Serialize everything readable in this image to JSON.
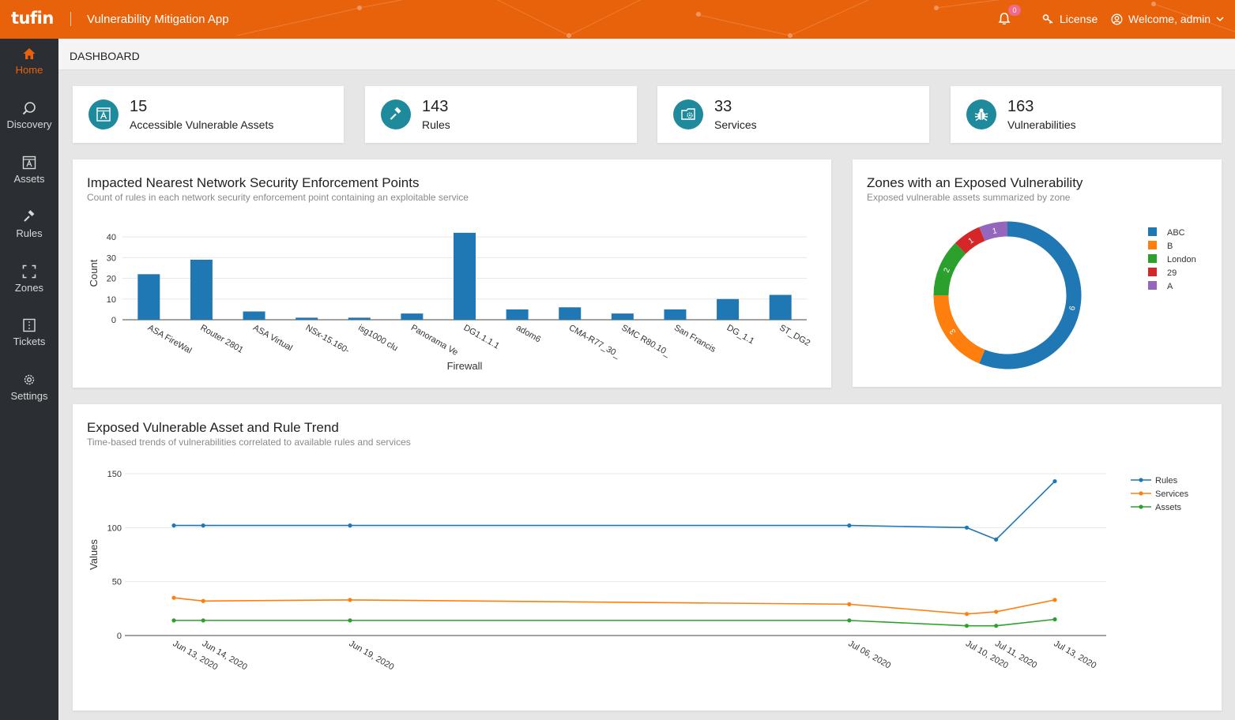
{
  "header": {
    "logo": "tufin",
    "app_title": "Vulnerability Mitigation App",
    "notification_count": "0",
    "license_label": "License",
    "welcome_label": "Welcome, admin"
  },
  "sidebar": {
    "items": [
      {
        "label": "Home",
        "icon": "home-icon"
      },
      {
        "label": "Discovery",
        "icon": "search-icon"
      },
      {
        "label": "Assets",
        "icon": "asset-icon"
      },
      {
        "label": "Rules",
        "icon": "gavel-icon"
      },
      {
        "label": "Zones",
        "icon": "zone-icon"
      },
      {
        "label": "Tickets",
        "icon": "ticket-icon"
      },
      {
        "label": "Settings",
        "icon": "gear-icon"
      }
    ]
  },
  "breadcrumb": "DASHBOARD",
  "stats": [
    {
      "value": "15",
      "label": "Accessible Vulnerable Assets",
      "icon": "asset-icon"
    },
    {
      "value": "143",
      "label": "Rules",
      "icon": "gavel-icon"
    },
    {
      "value": "33",
      "label": "Services",
      "icon": "services-icon"
    },
    {
      "value": "163",
      "label": "Vulnerabilities",
      "icon": "bug-icon"
    }
  ],
  "colors": {
    "brand": "#e8620b",
    "sidebar": "#2b2f33",
    "teal": "#1f8a9c",
    "blue": "#1f77b4",
    "orange": "#ff7f0e",
    "green": "#2ca02c",
    "red": "#d62728",
    "purple": "#9467bd"
  },
  "panels": {
    "bar": {
      "title": "Impacted Nearest Network Security Enforcement Points",
      "subtitle": "Count of rules in each network security enforcement point containing an exploitable service"
    },
    "donut": {
      "title": "Zones with an Exposed Vulnerability",
      "subtitle": "Exposed vulnerable assets summarized by zone"
    },
    "trend": {
      "title": "Exposed Vulnerable Asset and Rule Trend",
      "subtitle": "Time-based trends of vulnerabilities correlated to available rules and services"
    }
  },
  "chart_data": [
    {
      "type": "bar",
      "xlabel": "Firewall",
      "ylabel": "Count",
      "ylim": [
        0,
        45
      ],
      "yticks": [
        0,
        10,
        20,
        30,
        40
      ],
      "categories": [
        "ASA FireWal",
        "Router 2801",
        "ASA Virtual",
        "NSx-15.160-",
        "isg1000 clu",
        "Panorama Ve",
        "DG1.1.1.1",
        "adom6",
        "CMA-R77_30_",
        "SMC R80.10_",
        "San Francis",
        "DG_1.1",
        "ST_DG2"
      ],
      "values": [
        22,
        29,
        4,
        1,
        1,
        3,
        42,
        5,
        6,
        3,
        5,
        10,
        12
      ]
    },
    {
      "type": "pie",
      "hole": true,
      "labels": [
        "ABC",
        "B",
        "London",
        "29",
        "A"
      ],
      "values": [
        9,
        3,
        2,
        1,
        1
      ],
      "colors": [
        "#1f77b4",
        "#ff7f0e",
        "#2ca02c",
        "#d62728",
        "#9467bd"
      ]
    },
    {
      "type": "line",
      "xlabel": "",
      "ylabel": "Values",
      "ylim": [
        0,
        150
      ],
      "yticks": [
        0,
        50,
        100,
        150
      ],
      "x": [
        "2020-06-13",
        "2020-06-14",
        "2020-06-19",
        "2020-07-06",
        "2020-07-10",
        "2020-07-11",
        "2020-07-13"
      ],
      "x_tick_labels": [
        "Jun 13, 2020",
        "Jun 14, 2020",
        "Jun 19, 2020",
        "Jul 06, 2020",
        "Jul 10, 2020",
        "Jul 11, 2020",
        "Jul 13, 2020"
      ],
      "series": [
        {
          "name": "Rules",
          "color": "#1f77b4",
          "values": [
            102,
            102,
            102,
            102,
            100,
            89,
            143
          ]
        },
        {
          "name": "Services",
          "color": "#ff7f0e",
          "values": [
            35,
            32,
            33,
            29,
            20,
            22,
            33
          ]
        },
        {
          "name": "Assets",
          "color": "#2ca02c",
          "values": [
            14,
            14,
            14,
            14,
            9,
            9,
            15
          ]
        }
      ]
    }
  ]
}
